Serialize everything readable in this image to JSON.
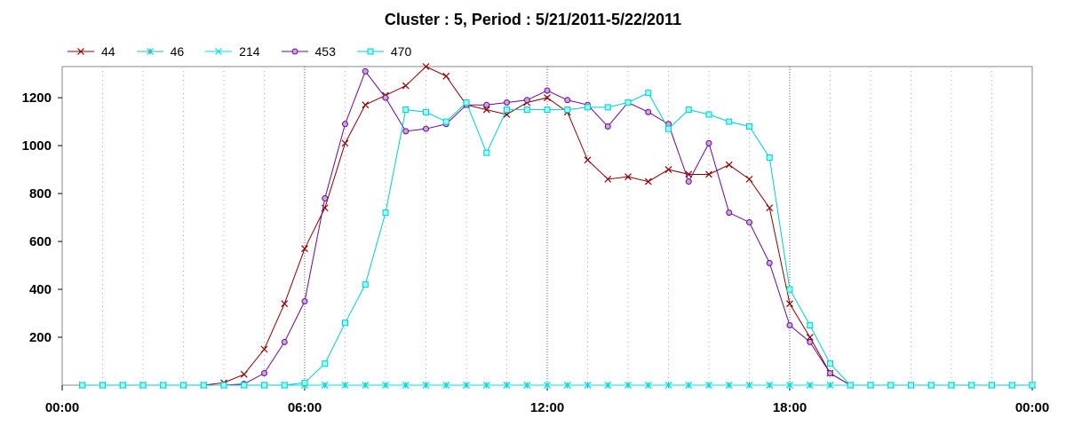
{
  "chart_data": {
    "type": "line",
    "title": "Cluster : 5, Period : 5/21/2011-5/22/2011",
    "xlabel": "",
    "ylabel": "",
    "x_ticks": [
      "00:00",
      "06:00",
      "12:00",
      "18:00",
      "00:00"
    ],
    "y_ticks": [
      200,
      400,
      600,
      800,
      1000,
      1200
    ],
    "xlim_hours": [
      0,
      24
    ],
    "ylim": [
      0,
      1330
    ],
    "x_hours": [
      0.5,
      1,
      1.5,
      2,
      2.5,
      3,
      3.5,
      4,
      4.5,
      5,
      5.5,
      6,
      6.5,
      7,
      7.5,
      8,
      8.5,
      9,
      9.5,
      10,
      10.5,
      11,
      11.5,
      12,
      12.5,
      13,
      13.5,
      14,
      14.5,
      15,
      15.5,
      16,
      16.5,
      17,
      17.5,
      18,
      18.5,
      19,
      19.5,
      20,
      20.5,
      21,
      21.5,
      22,
      22.5,
      23,
      23.5,
      24
    ],
    "legend_position": "top-left",
    "grid": "vertical dotted",
    "series": [
      {
        "name": "44",
        "color": "#8b0000",
        "marker": "x",
        "values": [
          0,
          0,
          0,
          0,
          0,
          0,
          0,
          10,
          45,
          150,
          340,
          570,
          740,
          1010,
          1170,
          1210,
          1250,
          1330,
          1290,
          1170,
          1150,
          1130,
          1180,
          1200,
          1140,
          940,
          860,
          870,
          850,
          900,
          880,
          880,
          920,
          860,
          740,
          340,
          200,
          50,
          0,
          0,
          0,
          0,
          0,
          0,
          0,
          0,
          0,
          0
        ]
      },
      {
        "name": "46",
        "color": "#20c0c0",
        "marker": "star",
        "values": [
          0,
          0,
          0,
          0,
          0,
          0,
          0,
          0,
          0,
          0,
          0,
          0,
          0,
          0,
          0,
          0,
          0,
          0,
          0,
          0,
          0,
          0,
          0,
          0,
          0,
          0,
          0,
          0,
          0,
          0,
          0,
          0,
          0,
          0,
          0,
          0,
          0,
          0,
          0,
          0,
          0,
          0,
          0,
          0,
          0,
          0,
          0,
          0
        ]
      },
      {
        "name": "214",
        "color": "#00e0e0",
        "marker": "x",
        "values": [
          0,
          0,
          0,
          0,
          0,
          0,
          0,
          0,
          0,
          0,
          0,
          0,
          0,
          0,
          0,
          0,
          0,
          0,
          0,
          0,
          0,
          0,
          0,
          0,
          0,
          0,
          0,
          0,
          0,
          0,
          0,
          0,
          0,
          0,
          0,
          0,
          0,
          0,
          0,
          0,
          0,
          0,
          0,
          0,
          0,
          0,
          0,
          0
        ]
      },
      {
        "name": "453",
        "color": "#6a0a8a",
        "marker": "circle",
        "values": [
          0,
          0,
          0,
          0,
          0,
          0,
          0,
          0,
          5,
          50,
          180,
          350,
          780,
          1090,
          1310,
          1200,
          1060,
          1070,
          1090,
          1170,
          1170,
          1180,
          1190,
          1230,
          1190,
          1170,
          1080,
          1180,
          1140,
          1090,
          850,
          1010,
          720,
          680,
          510,
          250,
          180,
          50,
          0,
          0,
          0,
          0,
          0,
          0,
          0,
          0,
          0,
          0
        ]
      },
      {
        "name": "470",
        "color": "#00cccc",
        "marker": "square",
        "values": [
          0,
          0,
          0,
          0,
          0,
          0,
          0,
          0,
          0,
          0,
          0,
          10,
          90,
          260,
          420,
          720,
          1150,
          1140,
          1100,
          1180,
          970,
          1150,
          1150,
          1150,
          1150,
          1160,
          1160,
          1180,
          1220,
          1070,
          1150,
          1130,
          1100,
          1080,
          950,
          400,
          250,
          90,
          0,
          0,
          0,
          0,
          0,
          0,
          0,
          0,
          0,
          0
        ]
      }
    ]
  }
}
